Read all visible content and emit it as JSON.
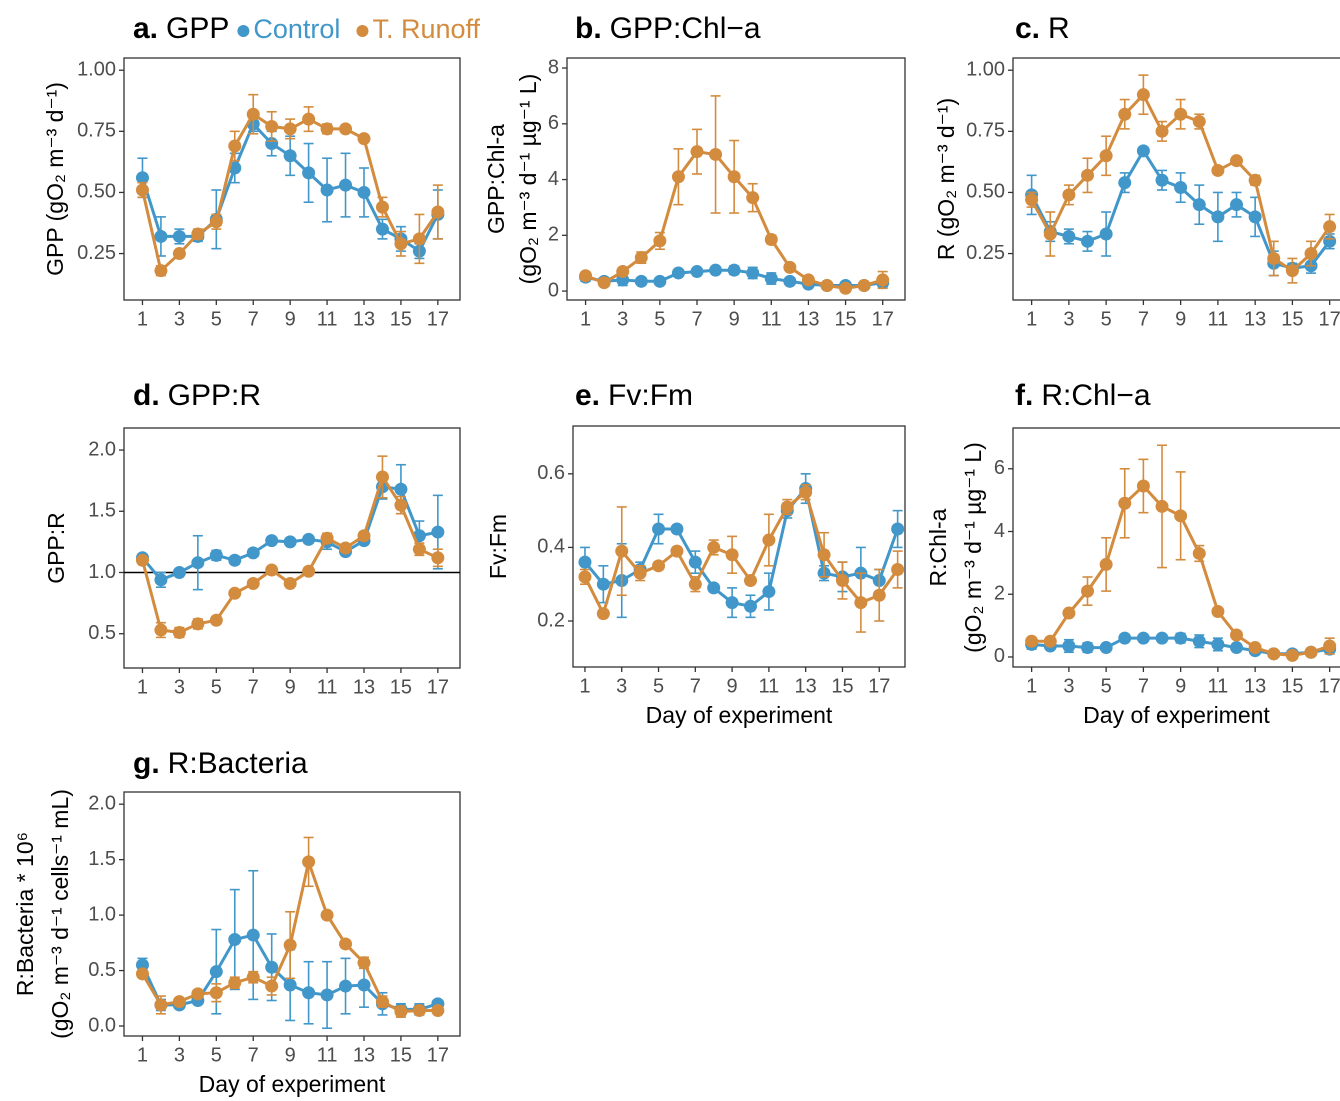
{
  "chart_data": [
    {
      "type": "line",
      "panel_label": "a.",
      "title": "GPP",
      "ylabel": "GPP (gO₂ m⁻³ d⁻¹)",
      "legend": "top",
      "x": [
        1,
        2,
        3,
        4,
        5,
        6,
        7,
        8,
        9,
        10,
        11,
        12,
        13,
        14,
        15,
        16,
        17
      ],
      "xlim": [
        0,
        18.2
      ],
      "xticks": [
        1,
        3,
        5,
        7,
        9,
        11,
        13,
        15,
        17
      ],
      "ylim": [
        0.06,
        1.05
      ],
      "yticks": [
        0.25,
        {
          "value": 0.5,
          "label": "0.50"
        },
        0.75,
        {
          "value": 1,
          "label": "1.00"
        }
      ],
      "series": [
        {
          "name": "Control",
          "color": "#4197c9",
          "values": [
            0.56,
            0.32,
            0.32,
            0.32,
            0.39,
            0.6,
            0.78,
            0.7,
            0.65,
            0.58,
            0.51,
            0.53,
            0.5,
            0.35,
            0.31,
            0.26,
            0.41
          ],
          "errors": [
            0.08,
            0.08,
            0.03,
            0.02,
            0.12,
            0.06,
            0.03,
            0.05,
            0.08,
            0.12,
            0.13,
            0.13,
            0.1,
            0.04,
            0.05,
            0.03,
            0.1
          ]
        },
        {
          "name": "T. Runoff",
          "color": "#d38b3e",
          "values": [
            0.51,
            0.18,
            0.25,
            0.33,
            0.38,
            0.69,
            0.82,
            0.77,
            0.76,
            0.8,
            0.76,
            0.76,
            0.72,
            0.44,
            0.29,
            0.31,
            0.42
          ],
          "errors": [
            0.03,
            0.02,
            0.01,
            0.02,
            0.03,
            0.06,
            0.08,
            0.06,
            0.04,
            0.05,
            0.02,
            0.01,
            0.01,
            0.04,
            0.05,
            0.1,
            0.11
          ]
        }
      ]
    },
    {
      "type": "line",
      "panel_label": "b.",
      "title": "GPP:Chl−a",
      "ylabel": [
        "GPP:Chl-a",
        "(gO₂ m⁻³ d⁻¹ µg⁻¹ L)"
      ],
      "x": [
        1,
        2,
        3,
        4,
        5,
        6,
        7,
        8,
        9,
        10,
        11,
        12,
        13,
        14,
        15,
        16,
        17
      ],
      "xlim": [
        0,
        18.2
      ],
      "xticks": [
        1,
        3,
        5,
        7,
        9,
        11,
        13,
        15,
        17
      ],
      "ylim": [
        -0.32,
        8.36
      ],
      "yticks": [
        0,
        2,
        4,
        6,
        8
      ],
      "series": [
        {
          "color": "#4197c9",
          "values": [
            0.5,
            0.35,
            0.4,
            0.35,
            0.35,
            0.65,
            0.7,
            0.75,
            0.75,
            0.65,
            0.45,
            0.35,
            0.25,
            0.2,
            0.2,
            0.2,
            0.3
          ],
          "errors": [
            0.15,
            0.1,
            0.2,
            0.1,
            0.1,
            0.1,
            0.1,
            0.1,
            0.15,
            0.2,
            0.2,
            0.1,
            0.1,
            0.05,
            0.05,
            0.1,
            0.15
          ]
        },
        {
          "color": "#d38b3e",
          "values": [
            0.55,
            0.3,
            0.7,
            1.2,
            1.8,
            4.1,
            5.0,
            4.9,
            4.1,
            3.35,
            1.85,
            0.85,
            0.4,
            0.2,
            0.1,
            0.2,
            0.4
          ],
          "errors": [
            0.05,
            0.05,
            0.1,
            0.2,
            0.3,
            1.0,
            0.8,
            2.1,
            1.3,
            0.5,
            0.15,
            0.1,
            0.05,
            0.05,
            0.05,
            0.1,
            0.3
          ]
        }
      ]
    },
    {
      "type": "line",
      "panel_label": "c.",
      "title": "R",
      "ylabel": "R (gO₂ m⁻³ d⁻¹)",
      "x": [
        1,
        2,
        3,
        4,
        5,
        6,
        7,
        8,
        9,
        10,
        11,
        12,
        13,
        14,
        15,
        16,
        17
      ],
      "xlim": [
        0,
        18.2
      ],
      "xticks": [
        1,
        3,
        5,
        7,
        9,
        11,
        13,
        15,
        17
      ],
      "ylim": [
        0.06,
        1.05
      ],
      "yticks": [
        0.25,
        {
          "value": 0.5,
          "label": "0.50"
        },
        0.75,
        {
          "value": 1,
          "label": "1.00"
        }
      ],
      "series": [
        {
          "color": "#4197c9",
          "values": [
            0.49,
            0.34,
            0.32,
            0.3,
            0.33,
            0.54,
            0.67,
            0.55,
            0.52,
            0.45,
            0.4,
            0.45,
            0.4,
            0.21,
            0.19,
            0.2,
            0.3
          ],
          "errors": [
            0.08,
            0.04,
            0.03,
            0.04,
            0.09,
            0.04,
            0.01,
            0.04,
            0.06,
            0.08,
            0.1,
            0.05,
            0.08,
            0.05,
            0.02,
            0.03,
            0.03
          ]
        },
        {
          "color": "#d38b3e",
          "values": [
            0.47,
            0.33,
            0.49,
            0.57,
            0.65,
            0.82,
            0.9,
            0.75,
            0.82,
            0.79,
            0.59,
            0.63,
            0.55,
            0.23,
            0.18,
            0.25,
            0.36
          ],
          "errors": [
            0.03,
            0.09,
            0.04,
            0.07,
            0.08,
            0.06,
            0.08,
            0.04,
            0.06,
            0.03,
            0.01,
            0.01,
            0.02,
            0.07,
            0.05,
            0.05,
            0.05
          ]
        }
      ]
    },
    {
      "type": "line",
      "panel_label": "d.",
      "title": "GPP:R",
      "ylabel": "GPP:R",
      "reference_line": 1,
      "x": [
        1,
        2,
        3,
        4,
        5,
        6,
        7,
        8,
        9,
        10,
        11,
        12,
        13,
        14,
        15,
        16,
        17
      ],
      "xlim": [
        0,
        18.2
      ],
      "xticks": [
        1,
        3,
        5,
        7,
        9,
        11,
        13,
        15,
        17
      ],
      "ylim": [
        0.22,
        2.18
      ],
      "yticks": [
        0.5,
        {
          "value": 1,
          "label": "1.0"
        },
        1.5,
        {
          "value": 2,
          "label": "2.0"
        }
      ],
      "series": [
        {
          "color": "#4197c9",
          "values": [
            1.12,
            0.94,
            1.0,
            1.08,
            1.14,
            1.1,
            1.16,
            1.26,
            1.25,
            1.27,
            1.25,
            1.17,
            1.26,
            1.7,
            1.68,
            1.3,
            1.33
          ],
          "errors": [
            0.03,
            0.06,
            0.02,
            0.22,
            0.04,
            0.03,
            0.03,
            0.02,
            0.02,
            0.03,
            0.06,
            0.02,
            0.03,
            0.1,
            0.2,
            0.12,
            0.3
          ]
        },
        {
          "color": "#d38b3e",
          "values": [
            1.1,
            0.53,
            0.51,
            0.58,
            0.61,
            0.83,
            0.91,
            1.02,
            0.91,
            1.01,
            1.28,
            1.2,
            1.3,
            1.78,
            1.55,
            1.19,
            1.12
          ],
          "errors": [
            0.02,
            0.06,
            0.04,
            0.04,
            0.02,
            0.02,
            0.02,
            0.02,
            0.02,
            0.02,
            0.04,
            0.03,
            0.03,
            0.17,
            0.07,
            0.05,
            0.07
          ]
        }
      ]
    },
    {
      "type": "line",
      "panel_label": "e.",
      "title": "Fv:Fm",
      "ylabel": "Fv:Fm",
      "xlabel": "Day of experiment",
      "x": [
        1,
        2,
        3,
        4,
        5,
        6,
        7,
        8,
        9,
        10,
        11,
        12,
        13,
        14,
        15,
        16,
        17,
        18
      ],
      "xlim": [
        0.35,
        18.4
      ],
      "xticks": [
        1,
        3,
        5,
        7,
        9,
        11,
        13,
        15,
        17
      ],
      "ylim": [
        0.075,
        0.73
      ],
      "yticks": [
        0.2,
        0.4,
        0.6
      ],
      "series": [
        {
          "color": "#4197c9",
          "values": [
            0.36,
            0.3,
            0.31,
            0.34,
            0.45,
            0.45,
            0.36,
            0.29,
            0.25,
            0.24,
            0.28,
            0.5,
            0.56,
            0.33,
            0.32,
            0.33,
            0.31,
            0.45
          ],
          "errors": [
            0.04,
            0.05,
            0.1,
            0.02,
            0.04,
            0.01,
            0.03,
            0.01,
            0.04,
            0.03,
            0.05,
            0.02,
            0.04,
            0.02,
            0.04,
            0.07,
            0.03,
            0.05
          ]
        },
        {
          "color": "#d38b3e",
          "values": [
            0.32,
            0.22,
            0.39,
            0.33,
            0.35,
            0.39,
            0.3,
            0.4,
            0.38,
            0.31,
            0.42,
            0.51,
            0.55,
            0.38,
            0.31,
            0.25,
            0.27,
            0.34
          ],
          "errors": [
            0.02,
            0.01,
            0.12,
            0.02,
            0.01,
            0.01,
            0.02,
            0.02,
            0.05,
            0.01,
            0.07,
            0.02,
            0.02,
            0.06,
            0.05,
            0.08,
            0.07,
            0.05
          ]
        }
      ]
    },
    {
      "type": "line",
      "panel_label": "f.",
      "title": "R:Chl−a",
      "ylabel": [
        "R:Chl-a",
        "(gO₂ m⁻³ d⁻¹ µg⁻¹ L)"
      ],
      "xlabel": "Day of experiment",
      "x": [
        1,
        2,
        3,
        4,
        5,
        6,
        7,
        8,
        9,
        10,
        11,
        12,
        13,
        14,
        15,
        16,
        17
      ],
      "xlim": [
        0,
        18.2
      ],
      "xticks": [
        1,
        3,
        5,
        7,
        9,
        11,
        13,
        15,
        17
      ],
      "ylim": [
        -0.32,
        7.3
      ],
      "yticks": [
        0,
        2,
        4,
        6
      ],
      "series": [
        {
          "color": "#4197c9",
          "values": [
            0.4,
            0.35,
            0.35,
            0.3,
            0.3,
            0.6,
            0.6,
            0.6,
            0.6,
            0.5,
            0.4,
            0.3,
            0.2,
            0.1,
            0.1,
            0.15,
            0.25
          ],
          "errors": [
            0.15,
            0.1,
            0.2,
            0.15,
            0.1,
            0.1,
            0.1,
            0.1,
            0.15,
            0.2,
            0.2,
            0.1,
            0.1,
            0.05,
            0.05,
            0.1,
            0.15
          ]
        },
        {
          "color": "#d38b3e",
          "values": [
            0.5,
            0.5,
            1.4,
            2.1,
            2.95,
            4.9,
            5.45,
            4.8,
            4.5,
            3.3,
            1.45,
            0.7,
            0.3,
            0.1,
            0.05,
            0.15,
            0.35
          ],
          "errors": [
            0.1,
            0.1,
            0.1,
            0.45,
            0.85,
            1.1,
            0.85,
            1.95,
            1.4,
            0.25,
            0.1,
            0.1,
            0.05,
            0.05,
            0.05,
            0.1,
            0.25
          ]
        }
      ]
    },
    {
      "type": "line",
      "panel_label": "g.",
      "title": "R:Bacteria",
      "ylabel": [
        "R:Bacteria * 10⁶",
        "(gO₂ m⁻³ d⁻¹ cells⁻¹ mL)"
      ],
      "xlabel": "Day of experiment",
      "x": [
        1,
        2,
        3,
        4,
        5,
        6,
        7,
        8,
        9,
        10,
        11,
        12,
        13,
        14,
        15,
        16,
        17
      ],
      "xlim": [
        0,
        18.2
      ],
      "xticks": [
        1,
        3,
        5,
        7,
        9,
        11,
        13,
        15,
        17
      ],
      "ylim": [
        -0.09,
        2.11
      ],
      "yticks": [
        {
          "value": 0,
          "label": "0.0"
        },
        0.5,
        {
          "value": 1,
          "label": "1.0"
        },
        1.5,
        {
          "value": 2,
          "label": "2.0"
        }
      ],
      "series": [
        {
          "color": "#4197c9",
          "values": [
            0.55,
            0.19,
            0.19,
            0.23,
            0.49,
            0.78,
            0.82,
            0.53,
            0.37,
            0.3,
            0.28,
            0.36,
            0.37,
            0.2,
            0.15,
            0.15,
            0.2
          ],
          "errors": [
            0.06,
            0.05,
            0.03,
            0.03,
            0.38,
            0.45,
            0.58,
            0.3,
            0.32,
            0.28,
            0.3,
            0.25,
            0.2,
            0.1,
            0.05,
            0.05,
            0.03
          ]
        },
        {
          "color": "#d38b3e",
          "values": [
            0.47,
            0.19,
            0.22,
            0.29,
            0.3,
            0.39,
            0.44,
            0.36,
            0.73,
            1.48,
            1.0,
            0.74,
            0.57,
            0.22,
            0.13,
            0.14,
            0.14
          ],
          "errors": [
            0.03,
            0.08,
            0.03,
            0.03,
            0.08,
            0.05,
            0.05,
            0.08,
            0.3,
            0.22,
            0.02,
            0.03,
            0.05,
            0.05,
            0.05,
            0.03,
            0.03
          ]
        }
      ]
    }
  ]
}
